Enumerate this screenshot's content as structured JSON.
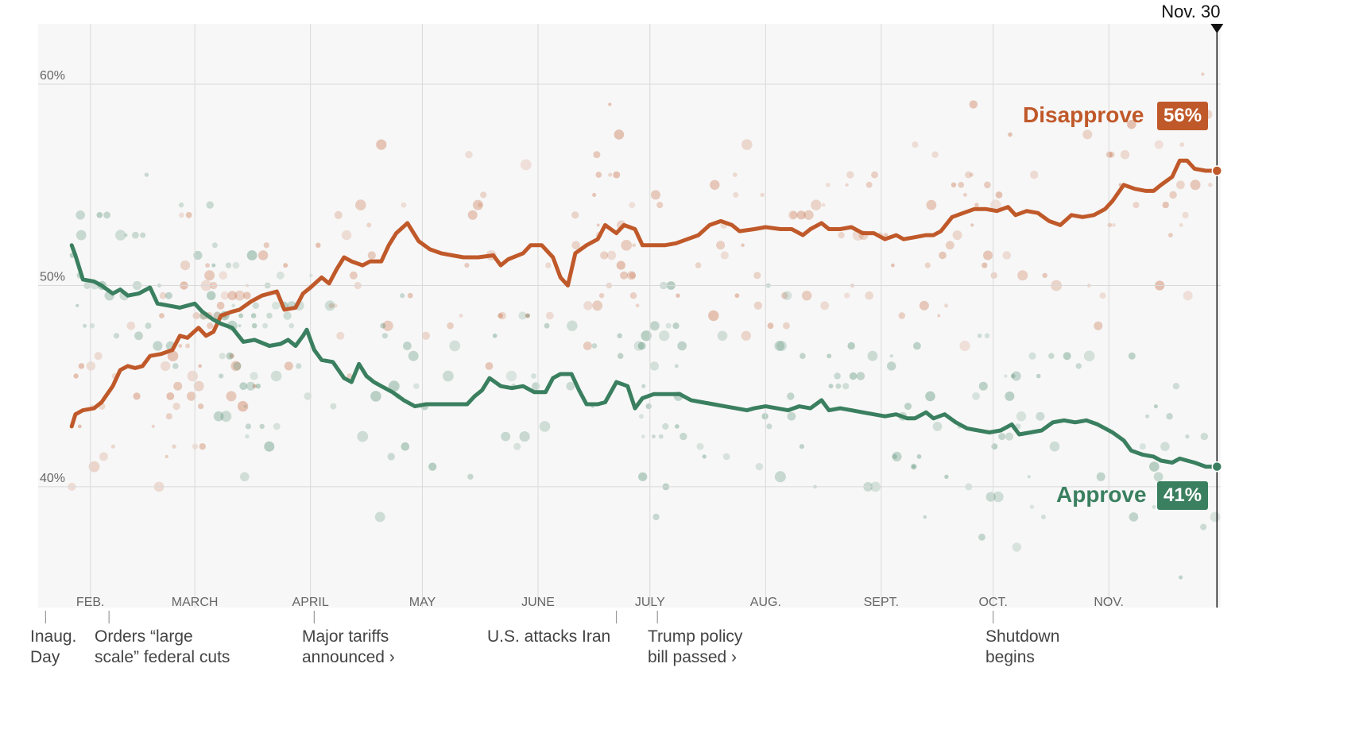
{
  "chart_data": {
    "type": "line",
    "title": "",
    "xlabel": "",
    "ylabel": "",
    "ylim": [
      34,
      63
    ],
    "y_ticks": [
      {
        "value": 40,
        "label": "40%"
      },
      {
        "value": 50,
        "label": "50%"
      },
      {
        "value": 60,
        "label": "60%"
      }
    ],
    "x_unit": "days since Jan. 20",
    "xlim": [
      -2,
      315
    ],
    "months": [
      {
        "label": "FEB.",
        "day": 12
      },
      {
        "label": "MARCH",
        "day": 40
      },
      {
        "label": "APRIL",
        "day": 71
      },
      {
        "label": "MAY",
        "day": 101
      },
      {
        "label": "JUNE",
        "day": 132
      },
      {
        "label": "JULY",
        "day": 162
      },
      {
        "label": "AUG.",
        "day": 193
      },
      {
        "label": "SEPT.",
        "day": 224
      },
      {
        "label": "OCT.",
        "day": 254
      },
      {
        "label": "NOV.",
        "day": 285
      }
    ],
    "end_marker": {
      "label": "Nov. 30",
      "day": 314
    },
    "series": [
      {
        "name": "Disapprove",
        "color": "#c0592a",
        "end_value_label": "56%",
        "points": [
          [
            7,
            43
          ],
          [
            8,
            43.6
          ],
          [
            10,
            43.8
          ],
          [
            13,
            43.9
          ],
          [
            15,
            44.2
          ],
          [
            18,
            45
          ],
          [
            20,
            45.8
          ],
          [
            22,
            46
          ],
          [
            24,
            45.9
          ],
          [
            26,
            46
          ],
          [
            28,
            46.5
          ],
          [
            31,
            46.6
          ],
          [
            34,
            46.8
          ],
          [
            36,
            47.5
          ],
          [
            38,
            47.4
          ],
          [
            41,
            47.9
          ],
          [
            43,
            47.5
          ],
          [
            45,
            47.7
          ],
          [
            47,
            48.5
          ],
          [
            50,
            48.7
          ],
          [
            52,
            48.8
          ],
          [
            55,
            49.2
          ],
          [
            58,
            49.5
          ],
          [
            62,
            49.7
          ],
          [
            64,
            48.8
          ],
          [
            67,
            48.9
          ],
          [
            69,
            49.6
          ],
          [
            71,
            49.9
          ],
          [
            74,
            50.4
          ],
          [
            76,
            50.1
          ],
          [
            78,
            50.8
          ],
          [
            80,
            51.4
          ],
          [
            82,
            51.2
          ],
          [
            85,
            51
          ],
          [
            87,
            51.2
          ],
          [
            90,
            51.2
          ],
          [
            92,
            52
          ],
          [
            94,
            52.6
          ],
          [
            97,
            53.1
          ],
          [
            100,
            52.2
          ],
          [
            103,
            51.8
          ],
          [
            106,
            51.6
          ],
          [
            109,
            51.5
          ],
          [
            112,
            51.4
          ],
          [
            116,
            51.4
          ],
          [
            120,
            51.5
          ],
          [
            122,
            51
          ],
          [
            124,
            51.3
          ],
          [
            128,
            51.6
          ],
          [
            130,
            52
          ],
          [
            133,
            52
          ],
          [
            136,
            51.4
          ],
          [
            138,
            50.4
          ],
          [
            140,
            50
          ],
          [
            142,
            51.6
          ],
          [
            145,
            52
          ],
          [
            148,
            52.3
          ],
          [
            150,
            53
          ],
          [
            153,
            52.6
          ],
          [
            155,
            53
          ],
          [
            158,
            52.8
          ],
          [
            160,
            52
          ],
          [
            163,
            52
          ],
          [
            166,
            52
          ],
          [
            169,
            52.1
          ],
          [
            172,
            52.3
          ],
          [
            175,
            52.5
          ],
          [
            178,
            53
          ],
          [
            181,
            53.2
          ],
          [
            184,
            53
          ],
          [
            186,
            52.7
          ],
          [
            190,
            52.8
          ],
          [
            193,
            52.9
          ],
          [
            197,
            52.8
          ],
          [
            200,
            52.8
          ],
          [
            203,
            52.5
          ],
          [
            205,
            52.8
          ],
          [
            208,
            53.1
          ],
          [
            210,
            52.8
          ],
          [
            213,
            52.8
          ],
          [
            216,
            52.9
          ],
          [
            219,
            52.6
          ],
          [
            222,
            52.6
          ],
          [
            225,
            52.3
          ],
          [
            228,
            52.5
          ],
          [
            230,
            52.3
          ],
          [
            233,
            52.4
          ],
          [
            236,
            52.5
          ],
          [
            238,
            52.5
          ],
          [
            240,
            52.7
          ],
          [
            243,
            53.4
          ],
          [
            246,
            53.6
          ],
          [
            249,
            53.8
          ],
          [
            252,
            53.8
          ],
          [
            255,
            53.7
          ],
          [
            258,
            53.9
          ],
          [
            260,
            53.5
          ],
          [
            263,
            53.7
          ],
          [
            266,
            53.6
          ],
          [
            269,
            53.2
          ],
          [
            272,
            53
          ],
          [
            275,
            53.5
          ],
          [
            278,
            53.4
          ],
          [
            281,
            53.5
          ],
          [
            284,
            53.8
          ],
          [
            286,
            54.2
          ],
          [
            289,
            55
          ],
          [
            292,
            54.8
          ],
          [
            295,
            54.7
          ],
          [
            297,
            54.7
          ],
          [
            299,
            55
          ],
          [
            302,
            55.4
          ],
          [
            304,
            56.2
          ],
          [
            306,
            56.2
          ],
          [
            308,
            55.8
          ],
          [
            311,
            55.7
          ],
          [
            314,
            55.7
          ]
        ]
      },
      {
        "name": "Approve",
        "color": "#3a7f5f",
        "end_value_label": "41%",
        "points": [
          [
            7,
            52
          ],
          [
            8,
            51.5
          ],
          [
            10,
            50.3
          ],
          [
            13,
            50.2
          ],
          [
            15,
            50
          ],
          [
            18,
            49.6
          ],
          [
            20,
            49.8
          ],
          [
            22,
            49.5
          ],
          [
            25,
            49.6
          ],
          [
            28,
            49.9
          ],
          [
            30,
            49.1
          ],
          [
            33,
            49
          ],
          [
            36,
            48.9
          ],
          [
            38,
            49
          ],
          [
            40,
            49.1
          ],
          [
            42,
            48.7
          ],
          [
            45,
            48.3
          ],
          [
            47,
            48.1
          ],
          [
            50,
            47.9
          ],
          [
            53,
            47.2
          ],
          [
            56,
            47.3
          ],
          [
            60,
            47
          ],
          [
            63,
            47.1
          ],
          [
            65,
            47.3
          ],
          [
            67,
            47
          ],
          [
            69,
            47.5
          ],
          [
            70,
            47.8
          ],
          [
            72,
            46.8
          ],
          [
            74,
            46.3
          ],
          [
            77,
            46.2
          ],
          [
            80,
            45.4
          ],
          [
            82,
            45.2
          ],
          [
            84,
            46.1
          ],
          [
            86,
            45.5
          ],
          [
            88,
            45.2
          ],
          [
            90,
            45
          ],
          [
            93,
            44.7
          ],
          [
            96,
            44.3
          ],
          [
            99,
            44
          ],
          [
            102,
            44.1
          ],
          [
            106,
            44.1
          ],
          [
            110,
            44.1
          ],
          [
            113,
            44.1
          ],
          [
            115,
            44.5
          ],
          [
            117,
            44.8
          ],
          [
            119,
            45.4
          ],
          [
            122,
            45
          ],
          [
            125,
            44.9
          ],
          [
            128,
            45
          ],
          [
            131,
            44.7
          ],
          [
            134,
            44.7
          ],
          [
            136,
            45.4
          ],
          [
            138,
            45.6
          ],
          [
            141,
            45.6
          ],
          [
            143,
            44.8
          ],
          [
            145,
            44.1
          ],
          [
            148,
            44.1
          ],
          [
            150,
            44.2
          ],
          [
            153,
            45.2
          ],
          [
            156,
            45
          ],
          [
            158,
            43.9
          ],
          [
            160,
            44.4
          ],
          [
            163,
            44.6
          ],
          [
            166,
            44.6
          ],
          [
            170,
            44.6
          ],
          [
            173,
            44.3
          ],
          [
            176,
            44.2
          ],
          [
            179,
            44.1
          ],
          [
            182,
            44
          ],
          [
            185,
            43.9
          ],
          [
            188,
            43.8
          ],
          [
            190,
            43.9
          ],
          [
            193,
            44
          ],
          [
            196,
            43.9
          ],
          [
            199,
            43.8
          ],
          [
            202,
            44
          ],
          [
            205,
            43.9
          ],
          [
            208,
            44.3
          ],
          [
            210,
            43.8
          ],
          [
            213,
            43.9
          ],
          [
            216,
            43.8
          ],
          [
            219,
            43.7
          ],
          [
            222,
            43.6
          ],
          [
            225,
            43.5
          ],
          [
            228,
            43.6
          ],
          [
            231,
            43.4
          ],
          [
            233,
            43.4
          ],
          [
            236,
            43.7
          ],
          [
            238,
            43.4
          ],
          [
            241,
            43.6
          ],
          [
            244,
            43.2
          ],
          [
            247,
            42.9
          ],
          [
            250,
            42.8
          ],
          [
            253,
            42.7
          ],
          [
            256,
            42.8
          ],
          [
            259,
            43.1
          ],
          [
            261,
            42.6
          ],
          [
            264,
            42.7
          ],
          [
            267,
            42.8
          ],
          [
            270,
            43.2
          ],
          [
            273,
            43.3
          ],
          [
            276,
            43.2
          ],
          [
            279,
            43.3
          ],
          [
            282,
            43.1
          ],
          [
            284,
            42.9
          ],
          [
            286,
            42.7
          ],
          [
            289,
            42.3
          ],
          [
            291,
            41.8
          ],
          [
            294,
            41.6
          ],
          [
            297,
            41.5
          ],
          [
            299,
            41.3
          ],
          [
            302,
            41.2
          ],
          [
            304,
            41.4
          ],
          [
            306,
            41.3
          ],
          [
            308,
            41.2
          ],
          [
            311,
            41
          ],
          [
            314,
            41
          ]
        ]
      }
    ],
    "poll_dots_note": "individual poll results shown as faint dots"
  },
  "annotations": [
    {
      "text": "Inaug.\nDay",
      "day": 0
    },
    {
      "text": "Orders “large\nscale” federal cuts",
      "day": 17
    },
    {
      "text": "Major tariffs\nannounced ›",
      "day": 72
    },
    {
      "text": "U.S. attacks Iran",
      "day": 153
    },
    {
      "text": "Trump policy\nbill passed ›",
      "day": 164
    },
    {
      "text": "Shutdown\nbegins",
      "day": 254
    }
  ],
  "labels": {
    "disapprove": "Disapprove",
    "disapprove_value": "56%",
    "approve": "Approve",
    "approve_value": "41%",
    "end_date": "Nov. 30"
  },
  "colors": {
    "disapprove": "#c0592a",
    "approve": "#3a7f5f",
    "plot_bg": "#f7f7f7",
    "grid": "#d9d9d9"
  }
}
